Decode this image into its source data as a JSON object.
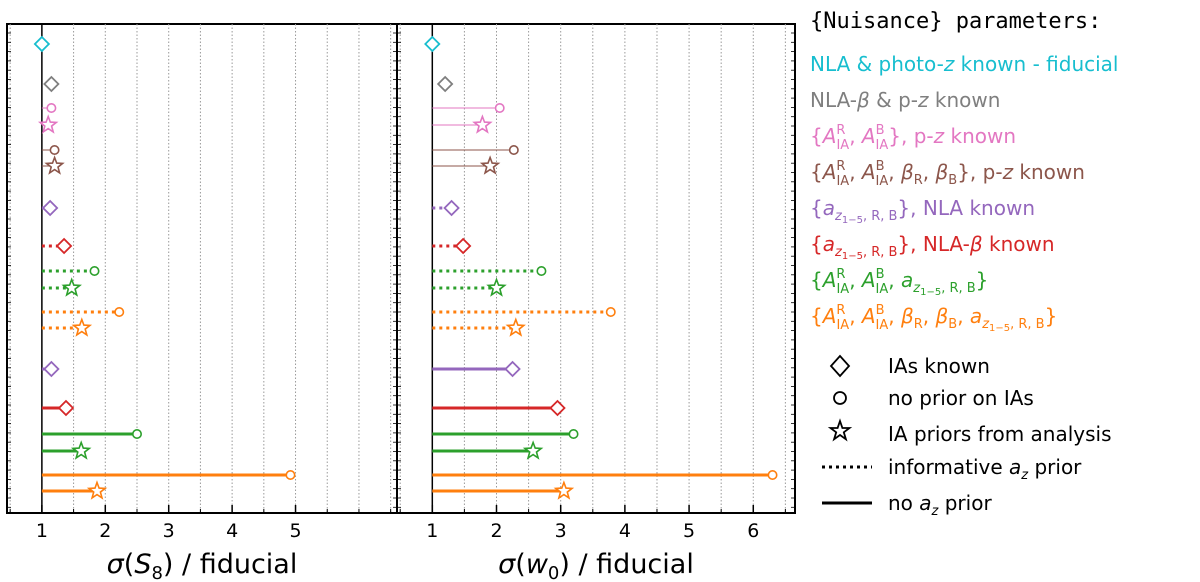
{
  "legend": {
    "title": "{Nuisance} parameters:",
    "scenario_entries": [
      {
        "label": "NLA & photo-z known - fiducial",
        "color": "#17becf"
      },
      {
        "label": "NLA-β & p-z known",
        "color": "#7f7f7f"
      },
      {
        "label": "{A_IA^R, A_IA^B}, p-z known",
        "color": "#e377c2"
      },
      {
        "label": "{A_IA^R, A_IA^B, β_R, β_B}, p-z known",
        "color": "#8c564b"
      },
      {
        "label": "{a_z1-5,R,B}, NLA known",
        "color": "#9467bd"
      },
      {
        "label": "{a_z1-5,R,B}, NLA-β known",
        "color": "#d62728"
      },
      {
        "label": "{A_IA^R, A_IA^B, a_z1-5,R,B}",
        "color": "#2ca02c"
      },
      {
        "label": "{A_IA^R, A_IA^B, β_R, β_B, a_z1-5,R,B}",
        "color": "#ff7f0e"
      }
    ],
    "marker_entries": [
      {
        "marker": "diamond",
        "label": "IAs known"
      },
      {
        "marker": "circle",
        "label": "no prior on IAs"
      },
      {
        "marker": "star",
        "label": "IA priors from analysis"
      }
    ],
    "line_entries": [
      {
        "style": "dotted",
        "label": "informative a_z prior"
      },
      {
        "style": "solid",
        "label": "no a_z prior"
      }
    ]
  },
  "chart_data": [
    {
      "type": "lollipop",
      "xlabel": "σ(S8) / fiducial",
      "xlim": [
        0.45,
        6.6
      ],
      "xticks": [
        1,
        2,
        3,
        4,
        5
      ],
      "minor_xticks": [
        0.5,
        1.5,
        2.5,
        3.5,
        4.5,
        5.5,
        6,
        6.5
      ],
      "rows": 17,
      "points": [
        {
          "row": 0,
          "value": 1.0,
          "marker": "diamond",
          "color": "#17becf",
          "line": "none"
        },
        {
          "row": 1,
          "value": 1.15,
          "marker": "diamond",
          "color": "#7f7f7f",
          "line": "none"
        },
        {
          "row": 2,
          "value": 1.15,
          "marker": "circle",
          "color": "#e377c2",
          "line": "thin"
        },
        {
          "row": 3,
          "value": 1.1,
          "marker": "star",
          "color": "#e377c2",
          "line": "thin"
        },
        {
          "row": 4,
          "value": 1.2,
          "marker": "circle",
          "color": "#8c564b",
          "line": "thin"
        },
        {
          "row": 5,
          "value": 1.2,
          "marker": "star",
          "color": "#8c564b",
          "line": "thin"
        },
        {
          "row": 6,
          "value": 1.13,
          "marker": "diamond",
          "color": "#9467bd",
          "line": "dotted"
        },
        {
          "row": 7,
          "value": 1.35,
          "marker": "diamond",
          "color": "#d62728",
          "line": "dotted"
        },
        {
          "row": 8,
          "value": 1.83,
          "marker": "circle",
          "color": "#2ca02c",
          "line": "dotted"
        },
        {
          "row": 9,
          "value": 1.47,
          "marker": "star",
          "color": "#2ca02c",
          "line": "dotted"
        },
        {
          "row": 10,
          "value": 2.22,
          "marker": "circle",
          "color": "#ff7f0e",
          "line": "dotted"
        },
        {
          "row": 11,
          "value": 1.63,
          "marker": "star",
          "color": "#ff7f0e",
          "line": "dotted"
        },
        {
          "row": 12,
          "value": 1.15,
          "marker": "diamond",
          "color": "#9467bd",
          "line": "solid"
        },
        {
          "row": 13,
          "value": 1.38,
          "marker": "diamond",
          "color": "#d62728",
          "line": "solid"
        },
        {
          "row": 14,
          "value": 2.5,
          "marker": "circle",
          "color": "#2ca02c",
          "line": "solid"
        },
        {
          "row": 15,
          "value": 1.62,
          "marker": "star",
          "color": "#2ca02c",
          "line": "solid"
        },
        {
          "row": 16,
          "value": 4.92,
          "marker": "circle",
          "color": "#ff7f0e",
          "line": "solid"
        },
        {
          "row": 17,
          "value": 1.87,
          "marker": "star",
          "color": "#ff7f0e",
          "line": "solid"
        }
      ]
    },
    {
      "type": "lollipop",
      "xlabel": "σ(w0) / fiducial",
      "xlim": [
        0.45,
        6.65
      ],
      "xticks": [
        1,
        2,
        3,
        4,
        5,
        6
      ],
      "minor_xticks": [
        0.5,
        1.5,
        2.5,
        3.5,
        4.5,
        5.5,
        6.5
      ],
      "rows": 17,
      "points": [
        {
          "row": 0,
          "value": 1.0,
          "marker": "diamond",
          "color": "#17becf",
          "line": "none"
        },
        {
          "row": 1,
          "value": 1.2,
          "marker": "diamond",
          "color": "#7f7f7f",
          "line": "none"
        },
        {
          "row": 2,
          "value": 2.05,
          "marker": "circle",
          "color": "#e377c2",
          "line": "thin"
        },
        {
          "row": 3,
          "value": 1.78,
          "marker": "star",
          "color": "#e377c2",
          "line": "thin"
        },
        {
          "row": 4,
          "value": 2.27,
          "marker": "circle",
          "color": "#8c564b",
          "line": "thin"
        },
        {
          "row": 5,
          "value": 1.9,
          "marker": "star",
          "color": "#8c564b",
          "line": "thin"
        },
        {
          "row": 6,
          "value": 1.3,
          "marker": "diamond",
          "color": "#9467bd",
          "line": "dotted"
        },
        {
          "row": 7,
          "value": 1.48,
          "marker": "diamond",
          "color": "#d62728",
          "line": "dotted"
        },
        {
          "row": 8,
          "value": 2.7,
          "marker": "circle",
          "color": "#2ca02c",
          "line": "dotted"
        },
        {
          "row": 9,
          "value": 2.0,
          "marker": "star",
          "color": "#2ca02c",
          "line": "dotted"
        },
        {
          "row": 10,
          "value": 3.78,
          "marker": "circle",
          "color": "#ff7f0e",
          "line": "dotted"
        },
        {
          "row": 11,
          "value": 2.3,
          "marker": "star",
          "color": "#ff7f0e",
          "line": "dotted"
        },
        {
          "row": 12,
          "value": 2.25,
          "marker": "diamond",
          "color": "#9467bd",
          "line": "solid"
        },
        {
          "row": 13,
          "value": 2.95,
          "marker": "diamond",
          "color": "#d62728",
          "line": "solid"
        },
        {
          "row": 14,
          "value": 3.2,
          "marker": "circle",
          "color": "#2ca02c",
          "line": "solid"
        },
        {
          "row": 15,
          "value": 2.57,
          "marker": "star",
          "color": "#2ca02c",
          "line": "solid"
        },
        {
          "row": 16,
          "value": 6.3,
          "marker": "circle",
          "color": "#ff7f0e",
          "line": "solid"
        },
        {
          "row": 17,
          "value": 3.05,
          "marker": "star",
          "color": "#ff7f0e",
          "line": "solid"
        }
      ]
    }
  ]
}
